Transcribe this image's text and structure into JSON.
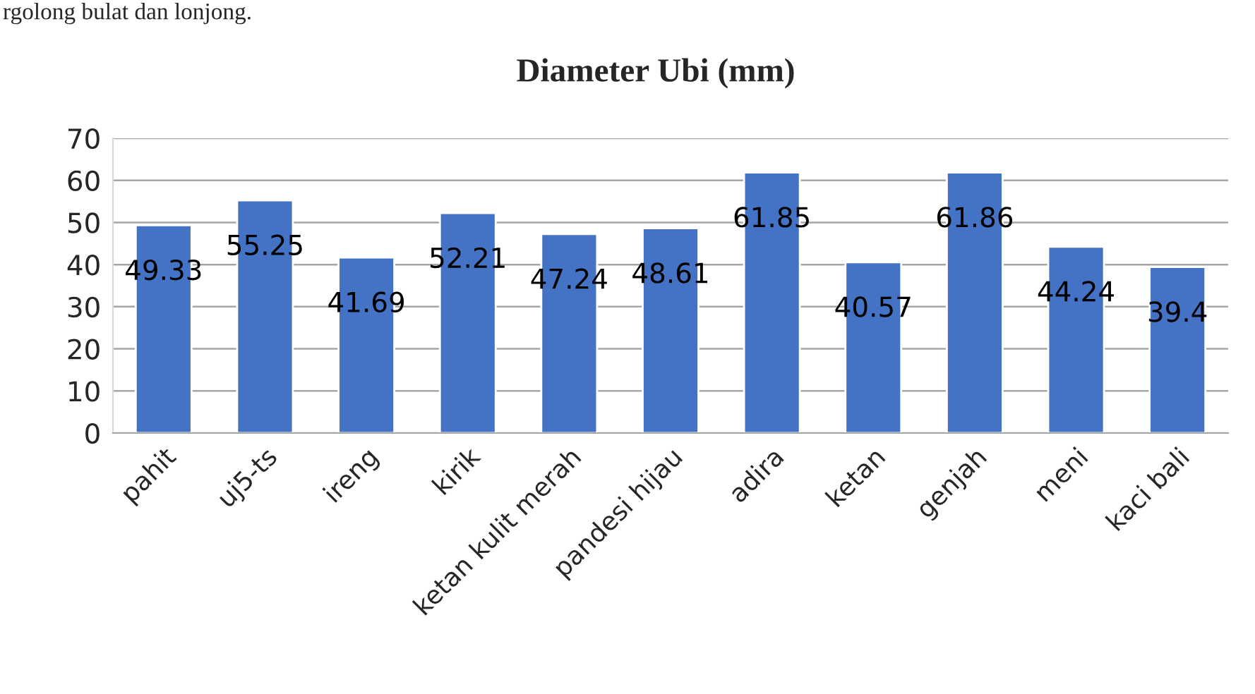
{
  "chart_data": {
    "type": "bar",
    "title": "Diameter Ubi (mm)",
    "categories": [
      "pahit",
      "uj5-ts",
      "ireng",
      "kirik",
      "ketan kulit merah",
      "pandesi hijau",
      "adira",
      "ketan",
      "genjah",
      "meni",
      "kaci bali"
    ],
    "values": [
      49.33,
      55.25,
      41.69,
      52.21,
      47.24,
      48.61,
      61.85,
      40.57,
      61.86,
      44.24,
      39.4
    ],
    "color": "#4472c4",
    "ylim": [
      0,
      70
    ],
    "yticks": [
      0,
      10,
      20,
      30,
      40,
      50,
      60,
      70
    ],
    "grid": "y",
    "data_labels": true,
    "annotations": [
      "rgolong bulat dan lonjong."
    ]
  }
}
